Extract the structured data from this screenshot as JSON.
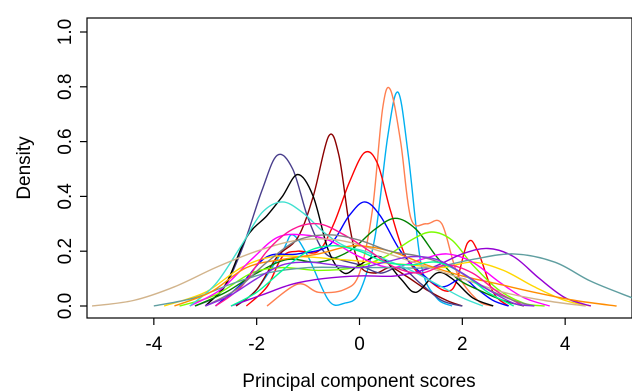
{
  "chart_data": {
    "type": "line",
    "title": "",
    "xlabel": "Principal component scores",
    "ylabel": "Density",
    "xlim": [
      -5.3,
      5.3
    ],
    "ylim": [
      0,
      1.0
    ],
    "xticks": [
      -4,
      -2,
      0,
      2,
      4
    ],
    "xtick_labels": [
      "-4",
      "-2",
      "0",
      "2",
      "4"
    ],
    "yticks": [
      0,
      0.2,
      0.4,
      0.6,
      0.8,
      1.0
    ],
    "ytick_labels": [
      "0.0",
      "0.2",
      "0.4",
      "0.6",
      "0.8",
      "1.0"
    ],
    "grid": false,
    "legend": "none",
    "series": [
      {
        "color": "#00b0f0",
        "points": [
          [
            -2.4,
            0
          ],
          [
            -2,
            0.06
          ],
          [
            -1.5,
            0.2
          ],
          [
            -1.3,
            0.26
          ],
          [
            -1,
            0.18
          ],
          [
            -0.6,
            0.02
          ],
          [
            -0.3,
            0.01
          ],
          [
            0,
            0.05
          ],
          [
            0.3,
            0.25
          ],
          [
            0.55,
            0.62
          ],
          [
            0.75,
            0.78
          ],
          [
            0.95,
            0.55
          ],
          [
            1.2,
            0.15
          ],
          [
            1.5,
            0.03
          ],
          [
            1.8,
            0
          ]
        ]
      },
      {
        "color": "#ff7f50",
        "points": [
          [
            -1.8,
            0
          ],
          [
            -1.2,
            0.08
          ],
          [
            -0.8,
            0.05
          ],
          [
            -0.3,
            0.06
          ],
          [
            0,
            0.12
          ],
          [
            0.25,
            0.35
          ],
          [
            0.45,
            0.72
          ],
          [
            0.6,
            0.79
          ],
          [
            0.8,
            0.6
          ],
          [
            1,
            0.32
          ],
          [
            1.3,
            0.3
          ],
          [
            1.6,
            0.3
          ],
          [
            1.9,
            0.12
          ],
          [
            2.3,
            0.02
          ],
          [
            2.6,
            0
          ]
        ]
      },
      {
        "color": "#ff0000",
        "points": [
          [
            -2.2,
            0
          ],
          [
            -1.8,
            0.07
          ],
          [
            -1.5,
            0.18
          ],
          [
            -1.2,
            0.2
          ],
          [
            -0.8,
            0.2
          ],
          [
            -0.5,
            0.3
          ],
          [
            -0.2,
            0.45
          ],
          [
            0.1,
            0.56
          ],
          [
            0.35,
            0.52
          ],
          [
            0.6,
            0.35
          ],
          [
            0.9,
            0.18
          ],
          [
            1.3,
            0.1
          ],
          [
            1.8,
            0.06
          ],
          [
            2.1,
            0.23
          ],
          [
            2.3,
            0.2
          ],
          [
            2.6,
            0.05
          ],
          [
            2.9,
            0
          ]
        ]
      },
      {
        "color": "#8b0000",
        "points": [
          [
            -2.4,
            0
          ],
          [
            -2,
            0.06
          ],
          [
            -1.6,
            0.18
          ],
          [
            -1.2,
            0.25
          ],
          [
            -0.9,
            0.4
          ],
          [
            -0.6,
            0.62
          ],
          [
            -0.4,
            0.55
          ],
          [
            -0.2,
            0.3
          ],
          [
            0,
            0.15
          ],
          [
            0.3,
            0.12
          ],
          [
            0.6,
            0.14
          ],
          [
            0.9,
            0.11
          ],
          [
            1.3,
            0.06
          ],
          [
            1.7,
            0.02
          ],
          [
            2,
            0
          ]
        ]
      },
      {
        "color": "#483d8b",
        "points": [
          [
            -3.2,
            0
          ],
          [
            -2.7,
            0.05
          ],
          [
            -2.3,
            0.2
          ],
          [
            -1.9,
            0.42
          ],
          [
            -1.6,
            0.55
          ],
          [
            -1.3,
            0.5
          ],
          [
            -1,
            0.32
          ],
          [
            -0.7,
            0.2
          ],
          [
            -0.4,
            0.17
          ],
          [
            0,
            0.15
          ],
          [
            0.4,
            0.12
          ],
          [
            0.8,
            0.14
          ],
          [
            1.2,
            0.08
          ],
          [
            1.6,
            0.02
          ],
          [
            2,
            0
          ]
        ]
      },
      {
        "color": "#000000",
        "points": [
          [
            -3,
            0
          ],
          [
            -2.6,
            0.08
          ],
          [
            -2.2,
            0.25
          ],
          [
            -1.8,
            0.33
          ],
          [
            -1.5,
            0.4
          ],
          [
            -1.2,
            0.48
          ],
          [
            -0.9,
            0.4
          ],
          [
            -0.6,
            0.2
          ],
          [
            -0.3,
            0.12
          ],
          [
            0,
            0.15
          ],
          [
            0.4,
            0.18
          ],
          [
            0.8,
            0.1
          ],
          [
            1.1,
            0.05
          ],
          [
            1.5,
            0.12
          ],
          [
            1.8,
            0.1
          ],
          [
            2.2,
            0.03
          ],
          [
            2.6,
            0
          ]
        ]
      },
      {
        "color": "#0000ff",
        "points": [
          [
            -2.8,
            0
          ],
          [
            -2.3,
            0.08
          ],
          [
            -1.8,
            0.18
          ],
          [
            -1.2,
            0.19
          ],
          [
            -0.6,
            0.22
          ],
          [
            -0.2,
            0.33
          ],
          [
            0.1,
            0.38
          ],
          [
            0.4,
            0.33
          ],
          [
            0.8,
            0.2
          ],
          [
            1.2,
            0.12
          ],
          [
            1.6,
            0.07
          ],
          [
            2,
            0.1
          ],
          [
            2.3,
            0.06
          ],
          [
            2.6,
            0.02
          ],
          [
            2.9,
            0
          ]
        ]
      },
      {
        "color": "#008000",
        "points": [
          [
            -3.2,
            0
          ],
          [
            -2.6,
            0.05
          ],
          [
            -2,
            0.12
          ],
          [
            -1.4,
            0.17
          ],
          [
            -0.8,
            0.16
          ],
          [
            -0.2,
            0.2
          ],
          [
            0.3,
            0.28
          ],
          [
            0.7,
            0.32
          ],
          [
            1.1,
            0.28
          ],
          [
            1.5,
            0.18
          ],
          [
            1.9,
            0.1
          ],
          [
            2.3,
            0.06
          ],
          [
            2.8,
            0.02
          ],
          [
            3.2,
            0
          ]
        ]
      },
      {
        "color": "#7cfc00",
        "points": [
          [
            -3.5,
            0
          ],
          [
            -2.8,
            0.04
          ],
          [
            -2.1,
            0.12
          ],
          [
            -1.5,
            0.14
          ],
          [
            -0.8,
            0.13
          ],
          [
            -0.1,
            0.14
          ],
          [
            0.5,
            0.18
          ],
          [
            1,
            0.24
          ],
          [
            1.4,
            0.27
          ],
          [
            1.8,
            0.24
          ],
          [
            2.2,
            0.15
          ],
          [
            2.7,
            0.06
          ],
          [
            3.2,
            0.01
          ],
          [
            3.6,
            0
          ]
        ]
      },
      {
        "color": "#ffd700",
        "points": [
          [
            -3.8,
            0
          ],
          [
            -3,
            0.05
          ],
          [
            -2.3,
            0.14
          ],
          [
            -1.7,
            0.18
          ],
          [
            -1.1,
            0.18
          ],
          [
            -0.4,
            0.17
          ],
          [
            0.3,
            0.16
          ],
          [
            1,
            0.15
          ],
          [
            1.6,
            0.14
          ],
          [
            2.2,
            0.16
          ],
          [
            2.8,
            0.13
          ],
          [
            3.4,
            0.07
          ],
          [
            4,
            0.02
          ],
          [
            4.5,
            0
          ]
        ]
      },
      {
        "color": "#ff00ff",
        "points": [
          [
            -3.3,
            0
          ],
          [
            -2.7,
            0.06
          ],
          [
            -2.1,
            0.17
          ],
          [
            -1.6,
            0.25
          ],
          [
            -1.1,
            0.26
          ],
          [
            -0.6,
            0.24
          ],
          [
            0,
            0.18
          ],
          [
            0.6,
            0.14
          ],
          [
            1.2,
            0.17
          ],
          [
            1.7,
            0.19
          ],
          [
            2.2,
            0.16
          ],
          [
            2.7,
            0.09
          ],
          [
            3.2,
            0.03
          ],
          [
            3.7,
            0
          ]
        ]
      },
      {
        "color": "#9400d3",
        "points": [
          [
            -2.5,
            0
          ],
          [
            -1.9,
            0.04
          ],
          [
            -1.3,
            0.08
          ],
          [
            -0.7,
            0.1
          ],
          [
            0,
            0.11
          ],
          [
            0.7,
            0.11
          ],
          [
            1.4,
            0.14
          ],
          [
            2,
            0.19
          ],
          [
            2.5,
            0.21
          ],
          [
            3,
            0.18
          ],
          [
            3.5,
            0.1
          ],
          [
            4,
            0.03
          ],
          [
            4.5,
            0
          ]
        ]
      },
      {
        "color": "#5f9ea0",
        "points": [
          [
            -4,
            0
          ],
          [
            -3.2,
            0.03
          ],
          [
            -2.5,
            0.08
          ],
          [
            -1.8,
            0.12
          ],
          [
            -1,
            0.14
          ],
          [
            -0.2,
            0.14
          ],
          [
            0.6,
            0.14
          ],
          [
            1.4,
            0.14
          ],
          [
            2.2,
            0.17
          ],
          [
            3,
            0.19
          ],
          [
            3.8,
            0.16
          ],
          [
            4.5,
            0.09
          ],
          [
            5.3,
            0.03
          ]
        ]
      },
      {
        "color": "#40e0d0",
        "points": [
          [
            -3.3,
            0
          ],
          [
            -2.8,
            0.08
          ],
          [
            -2.3,
            0.22
          ],
          [
            -1.9,
            0.34
          ],
          [
            -1.5,
            0.38
          ],
          [
            -1.1,
            0.34
          ],
          [
            -0.7,
            0.27
          ],
          [
            -0.3,
            0.22
          ],
          [
            0.1,
            0.2
          ],
          [
            0.5,
            0.17
          ],
          [
            1,
            0.13
          ],
          [
            1.5,
            0.08
          ],
          [
            2,
            0.03
          ],
          [
            2.4,
            0
          ]
        ]
      },
      {
        "color": "#d2b48c",
        "points": [
          [
            -5.2,
            0
          ],
          [
            -4.4,
            0.02
          ],
          [
            -3.6,
            0.07
          ],
          [
            -2.8,
            0.14
          ],
          [
            -2,
            0.2
          ],
          [
            -1.2,
            0.24
          ],
          [
            -0.4,
            0.24
          ],
          [
            0.4,
            0.2
          ],
          [
            1.2,
            0.15
          ],
          [
            2,
            0.1
          ],
          [
            2.8,
            0.05
          ],
          [
            3.6,
            0.02
          ],
          [
            4.4,
            0
          ]
        ]
      },
      {
        "color": "#ff8c00",
        "points": [
          [
            -3.6,
            0
          ],
          [
            -2.9,
            0.05
          ],
          [
            -2.2,
            0.14
          ],
          [
            -1.5,
            0.17
          ],
          [
            -0.8,
            0.19
          ],
          [
            -0.1,
            0.22
          ],
          [
            0.6,
            0.2
          ],
          [
            1.3,
            0.15
          ],
          [
            2,
            0.11
          ],
          [
            2.7,
            0.08
          ],
          [
            3.4,
            0.05
          ],
          [
            4.2,
            0.02
          ],
          [
            5,
            0
          ]
        ]
      },
      {
        "color": "#ff1493",
        "points": [
          [
            -2.8,
            0
          ],
          [
            -2.3,
            0.07
          ],
          [
            -1.8,
            0.2
          ],
          [
            -1.3,
            0.28
          ],
          [
            -0.8,
            0.3
          ],
          [
            -0.3,
            0.26
          ],
          [
            0.2,
            0.2
          ],
          [
            0.7,
            0.14
          ],
          [
            1.2,
            0.12
          ],
          [
            1.7,
            0.15
          ],
          [
            2.2,
            0.12
          ],
          [
            2.7,
            0.05
          ],
          [
            3.2,
            0
          ]
        ]
      },
      {
        "color": "#808080",
        "points": [
          [
            -3,
            0
          ],
          [
            -2.4,
            0.06
          ],
          [
            -1.8,
            0.16
          ],
          [
            -1.2,
            0.24
          ],
          [
            -0.6,
            0.26
          ],
          [
            0,
            0.24
          ],
          [
            0.6,
            0.2
          ],
          [
            1.2,
            0.18
          ],
          [
            1.8,
            0.14
          ],
          [
            2.4,
            0.07
          ],
          [
            3,
            0.02
          ],
          [
            3.4,
            0
          ]
        ]
      },
      {
        "color": "#00fa9a",
        "points": [
          [
            -2.5,
            0
          ],
          [
            -2,
            0.05
          ],
          [
            -1.5,
            0.13
          ],
          [
            -1,
            0.2
          ],
          [
            -0.5,
            0.22
          ],
          [
            0,
            0.2
          ],
          [
            0.5,
            0.16
          ],
          [
            1,
            0.15
          ],
          [
            1.5,
            0.16
          ],
          [
            2,
            0.12
          ],
          [
            2.5,
            0.05
          ],
          [
            3,
            0
          ]
        ]
      },
      {
        "color": "#8a2be2",
        "points": [
          [
            -3,
            0
          ],
          [
            -2.5,
            0.04
          ],
          [
            -2,
            0.1
          ],
          [
            -1.5,
            0.15
          ],
          [
            -1,
            0.16
          ],
          [
            -0.5,
            0.15
          ],
          [
            0,
            0.14
          ],
          [
            0.5,
            0.16
          ],
          [
            1,
            0.18
          ],
          [
            1.5,
            0.17
          ],
          [
            2,
            0.12
          ],
          [
            2.5,
            0.06
          ],
          [
            3,
            0.01
          ],
          [
            3.4,
            0
          ]
        ]
      }
    ]
  }
}
